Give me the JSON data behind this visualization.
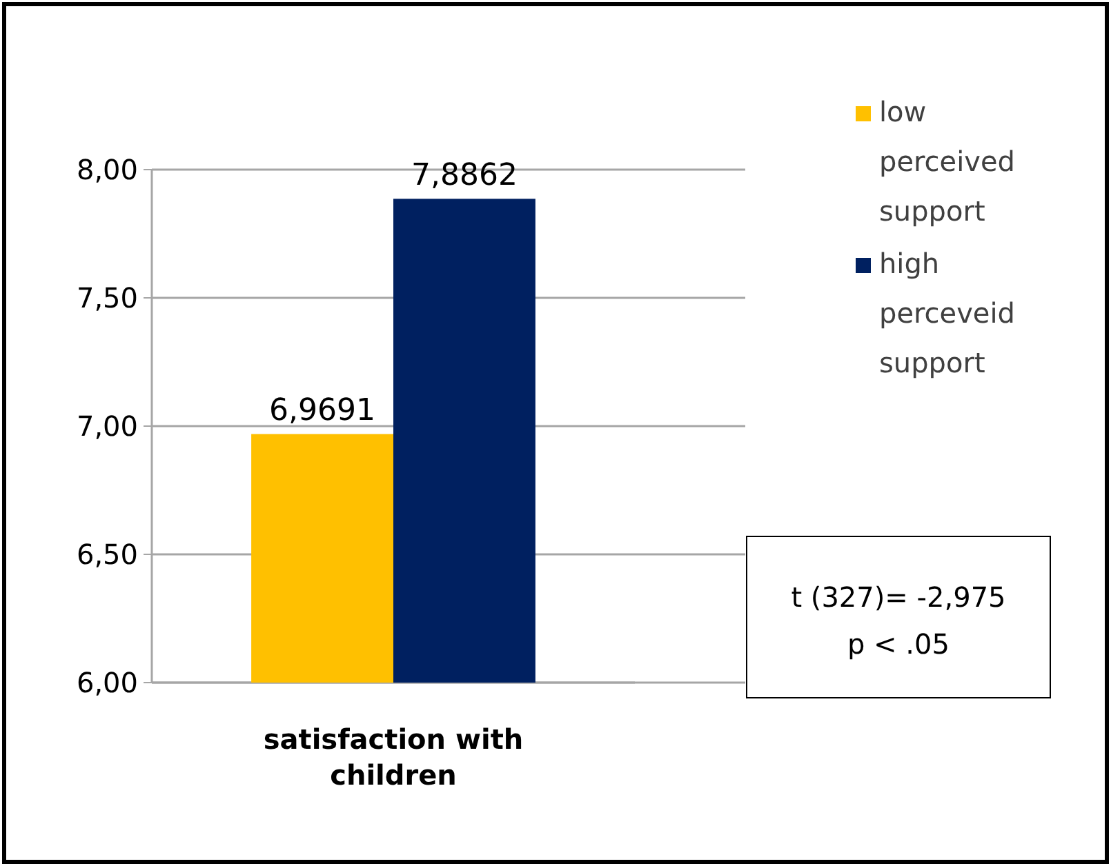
{
  "chart_data": {
    "type": "bar",
    "categories": [
      "satisfaction with children"
    ],
    "series": [
      {
        "name": "low perceived support",
        "color": "#ffc000",
        "values": [
          6.9691
        ],
        "value_labels": [
          "6,9691"
        ]
      },
      {
        "name": "high perceveid support",
        "color": "#002060",
        "values": [
          7.8862
        ],
        "value_labels": [
          "7,8862"
        ]
      }
    ],
    "ylim": [
      6,
      8
    ],
    "yticks": [
      {
        "value": 6,
        "label": "6,00"
      },
      {
        "value": 6.5,
        "label": "6,50"
      },
      {
        "value": 7,
        "label": "7,00"
      },
      {
        "value": 7.5,
        "label": "7,50"
      },
      {
        "value": 8,
        "label": "8,00"
      }
    ],
    "grid": "y",
    "legend": "right",
    "annotations": [
      "t (327)= -2,975",
      "p < .05"
    ]
  }
}
